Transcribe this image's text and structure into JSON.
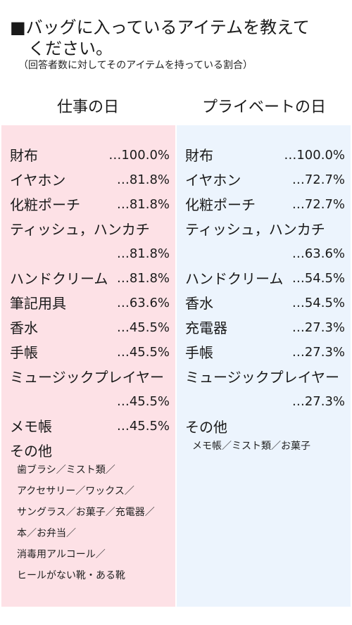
{
  "header": {
    "title_line1": "■バッグに入っているアイテムを教えて",
    "title_line2": "ください。",
    "subtitle": "（回答者数に対してそのアイテムを持っている割合）"
  },
  "columns": {
    "work": {
      "heading": "仕事の日",
      "items": [
        {
          "name": "財布",
          "value": "…100.0%"
        },
        {
          "name": "イヤホン",
          "value": "…81.8%"
        },
        {
          "name": "化粧ポーチ",
          "value": "…81.8%"
        },
        {
          "name": "ティッシュ，ハンカチ",
          "value": ""
        },
        {
          "name": "",
          "value": "…81.8%"
        },
        {
          "name": "ハンドクリーム",
          "value": "…81.8%"
        },
        {
          "name": "筆記用具",
          "value": "…63.6%"
        },
        {
          "name": "香水",
          "value": "…45.5%"
        },
        {
          "name": "手帳",
          "value": "…45.5%"
        },
        {
          "name": "ミュージックプレイヤー",
          "value": ""
        },
        {
          "name": "",
          "value": "…45.5%"
        },
        {
          "name": "メモ帳",
          "value": "…45.5%"
        }
      ],
      "other_heading": "その他",
      "other_lines": [
        "歯ブラシ／ミスト類／",
        "アクセサリー／ワックス／",
        "サングラス／お菓子／充電器／",
        "本／お弁当／",
        "消毒用アルコール／",
        "ヒールがない靴・ある靴"
      ]
    },
    "private": {
      "heading": "プライベートの日",
      "items": [
        {
          "name": "財布",
          "value": "…100.0%"
        },
        {
          "name": "イヤホン",
          "value": "…72.7%"
        },
        {
          "name": "化粧ポーチ",
          "value": "…72.7%"
        },
        {
          "name": "ティッシュ，ハンカチ",
          "value": ""
        },
        {
          "name": "",
          "value": "…63.6%"
        },
        {
          "name": "ハンドクリーム",
          "value": "…54.5%"
        },
        {
          "name": "香水",
          "value": "…54.5%"
        },
        {
          "name": "充電器",
          "value": "…27.3%"
        },
        {
          "name": "手帳",
          "value": "…27.3%"
        },
        {
          "name": "ミュージックプレイヤー",
          "value": ""
        },
        {
          "name": "",
          "value": "…27.3%"
        }
      ],
      "other_heading": "その他",
      "other_lines": [
        "メモ帳／ミスト類／お菓子"
      ]
    }
  }
}
